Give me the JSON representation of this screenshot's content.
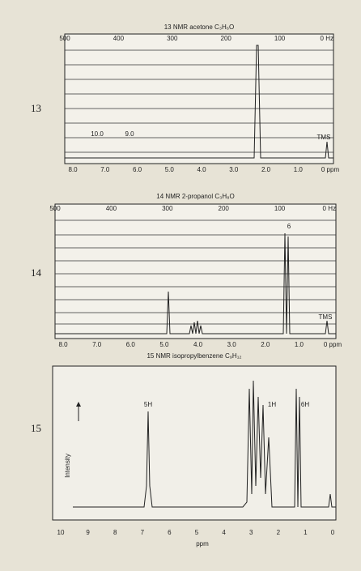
{
  "panels": [
    {
      "number": "13",
      "title": "13 NMR acetone C₃H₆O",
      "hz_labels": [
        "500",
        "400",
        "300",
        "200",
        "100",
        "0 Hz"
      ],
      "ppm_labels": [
        "8.0",
        "7.0",
        "6.0",
        "5.0",
        "4.0",
        "3.0",
        "2.0",
        "1.0",
        "0 ppm"
      ],
      "annotations": [
        "10.0",
        "9.0",
        "TMS"
      ]
    },
    {
      "number": "14",
      "title": "14 NMR 2-propanol C₃H₈O",
      "hz_labels": [
        "500",
        "400",
        "300",
        "200",
        "100",
        "0 Hz"
      ],
      "ppm_labels": [
        "8.0",
        "7.0",
        "6.0",
        "5.0",
        "4.0",
        "3.0",
        "2.0",
        "1.0",
        "0 ppm"
      ],
      "annotations": [
        "6",
        "TMS"
      ]
    },
    {
      "number": "15",
      "title": "15 NMR isopropylbenzene C₉H₁₂",
      "axis_label": "Intensity",
      "ppm_labels": [
        "10",
        "9",
        "8",
        "7",
        "6",
        "5",
        "4",
        "3",
        "2",
        "1",
        "0"
      ],
      "ppm_unit": "ppm",
      "annotations": [
        "5H",
        "1H",
        "6H"
      ]
    }
  ]
}
